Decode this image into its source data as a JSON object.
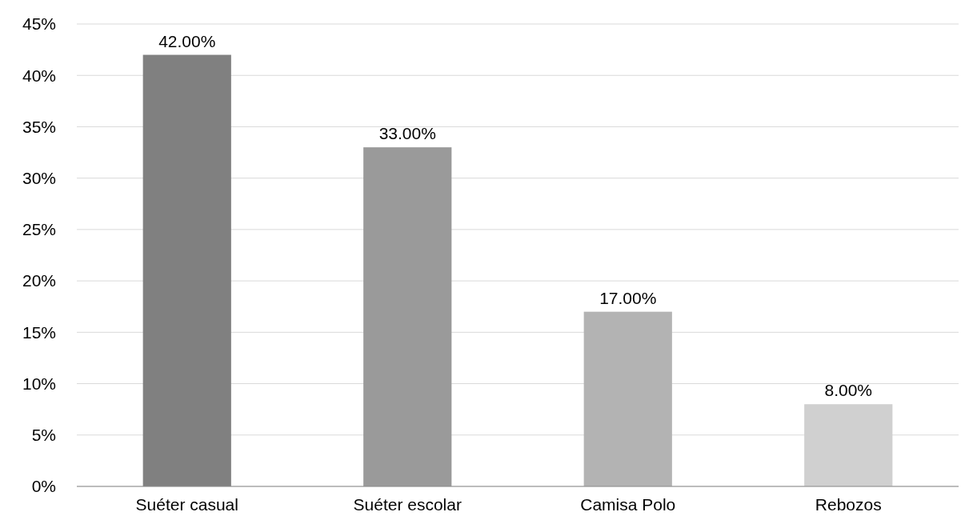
{
  "chart_data": {
    "type": "bar",
    "categories": [
      "Suéter casual",
      "Suéter escolar",
      "Camisa Polo",
      "Rebozos"
    ],
    "values": [
      42,
      33,
      17,
      8
    ],
    "colors": [
      "#808080",
      "#9a9a9a",
      "#b3b3b3",
      "#d0d0d0"
    ],
    "value_labels": [
      "42.00%",
      "33.00%",
      "17.00%",
      "8.00%"
    ],
    "ylim": [
      0,
      45
    ],
    "yticks": [
      {
        "value": 0,
        "label": "0%"
      },
      {
        "value": 5,
        "label": "5%"
      },
      {
        "value": 10,
        "label": "10%"
      },
      {
        "value": 15,
        "label": "15%"
      },
      {
        "value": 20,
        "label": "20%"
      },
      {
        "value": 25,
        "label": "25%"
      },
      {
        "value": 30,
        "label": "30%"
      },
      {
        "value": 35,
        "label": "35%"
      },
      {
        "value": 40,
        "label": "40%"
      },
      {
        "value": 45,
        "label": "45%"
      }
    ],
    "grid": "y"
  }
}
